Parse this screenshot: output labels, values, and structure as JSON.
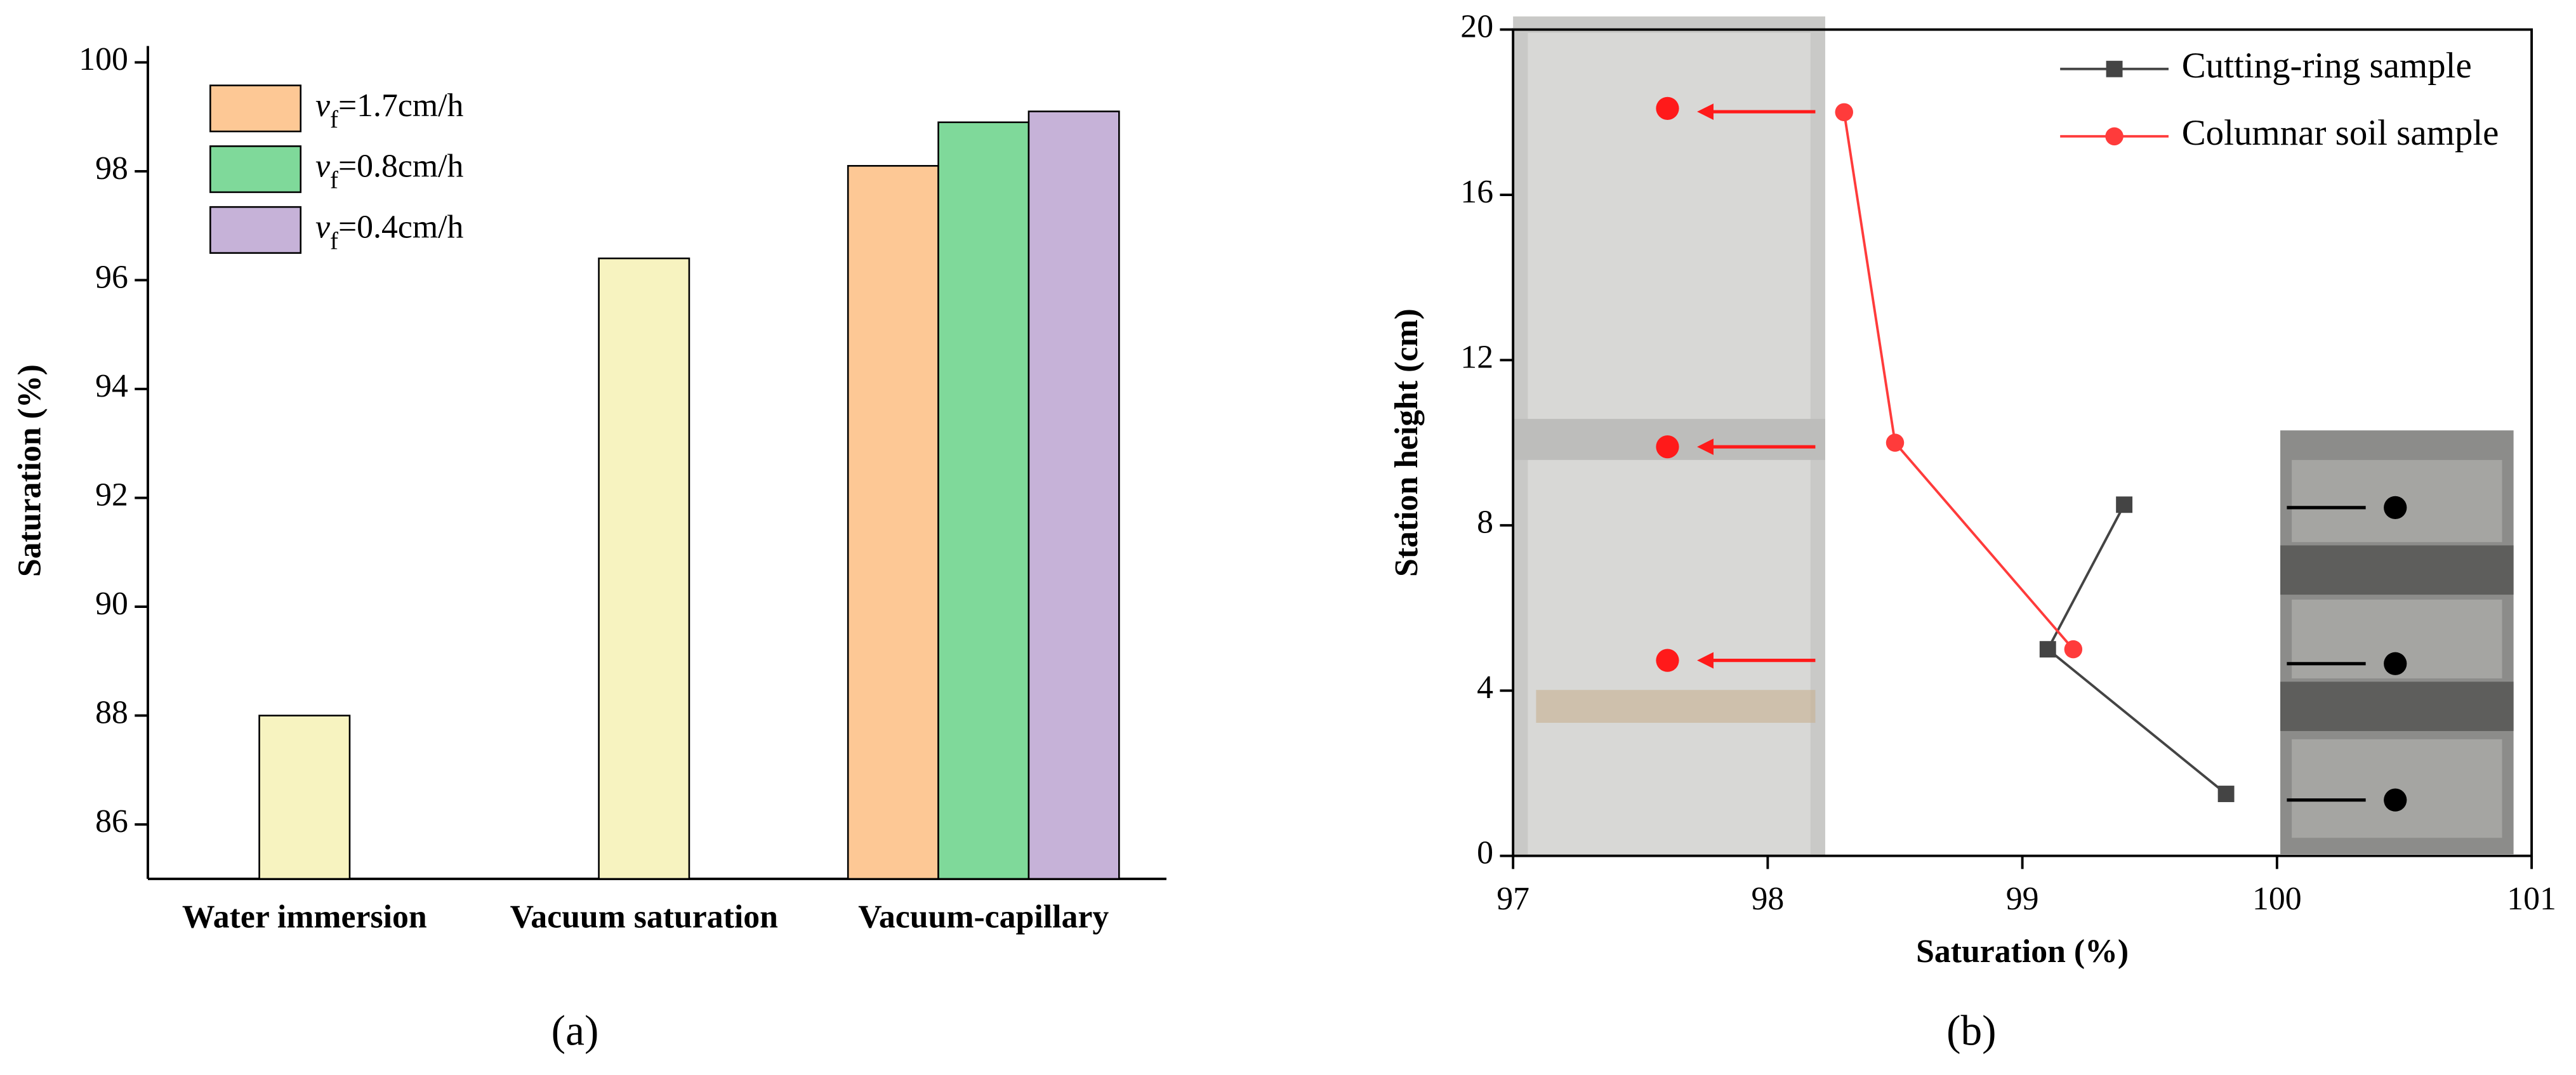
{
  "chart_data": [
    {
      "type": "bar",
      "caption": "(a)",
      "y_label": "Saturation (%)",
      "categories": [
        "Water immersion",
        "Vacuum saturation",
        "Vacuum-capillary"
      ],
      "series": [
        {
          "color": "#f7f3c0",
          "values": [
            88,
            96.4,
            null
          ]
        },
        {
          "name": "vf=1.7cm/h",
          "color": "#fdc895",
          "values": [
            null,
            null,
            98.1
          ]
        },
        {
          "name": "vf=0.8cm/h",
          "color": "#7fd99a",
          "values": [
            null,
            null,
            98.9
          ]
        },
        {
          "name": "vf=0.4cm/h",
          "color": "#c6b2d8",
          "values": [
            null,
            null,
            99.1
          ]
        }
      ],
      "ylim": [
        85,
        100
      ],
      "yticks": [
        86,
        88,
        90,
        92,
        94,
        96,
        98,
        100
      ]
    },
    {
      "type": "line",
      "caption": "(b)",
      "x_label": "Saturation (%)",
      "y_label": "Station height (cm)",
      "series": [
        {
          "name": "Cutting-ring sample",
          "color": "#444444",
          "marker": "square",
          "x": [
            99.4,
            99.1,
            99.8
          ],
          "values": [
            8.5,
            5,
            1.5
          ]
        },
        {
          "name": "Columnar soil sample",
          "color": "#ff3b3b",
          "marker": "circle",
          "x": [
            98.3,
            98.5,
            99.2
          ],
          "values": [
            18,
            10,
            5
          ]
        }
      ],
      "xlim": [
        97,
        101
      ],
      "xticks": [
        97,
        98,
        99,
        100,
        101
      ],
      "ylim": [
        0,
        20
      ],
      "yticks": [
        0,
        4,
        8,
        12,
        16,
        20
      ]
    }
  ]
}
